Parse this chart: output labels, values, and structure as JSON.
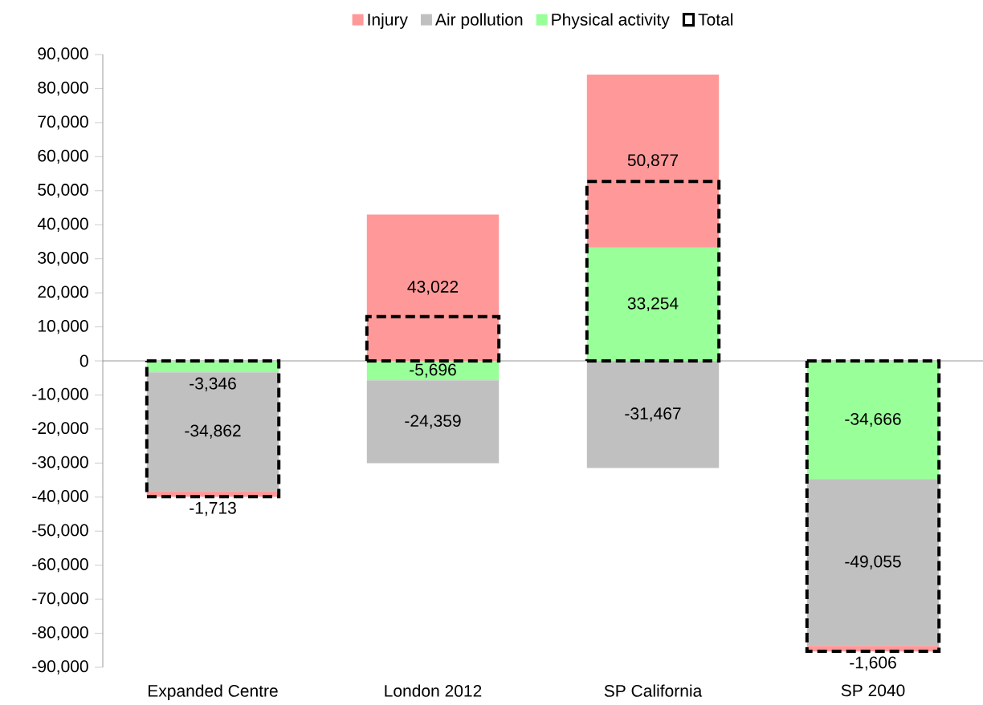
{
  "chart_data": {
    "type": "bar",
    "legend": "top",
    "categories": [
      "Expanded Centre",
      "London 2012",
      "SP California",
      "SP 2040"
    ],
    "ylim": [
      -90000,
      90000
    ],
    "yticks": [
      {
        "value": -90000,
        "label": "-90,000"
      },
      {
        "value": -80000,
        "label": "-80,000"
      },
      {
        "value": -70000,
        "label": "-70,000"
      },
      {
        "value": -60000,
        "label": "-60,000"
      },
      {
        "value": -50000,
        "label": "-50,000"
      },
      {
        "value": -40000,
        "label": "-40,000"
      },
      {
        "value": -30000,
        "label": "-30,000"
      },
      {
        "value": -20000,
        "label": "-20,000"
      },
      {
        "value": -10000,
        "label": "-10,000"
      },
      {
        "value": 0,
        "label": "0"
      },
      {
        "value": 10000,
        "label": "10,000"
      },
      {
        "value": 20000,
        "label": "20,000"
      },
      {
        "value": 30000,
        "label": "30,000"
      },
      {
        "value": 40000,
        "label": "40,000"
      },
      {
        "value": 50000,
        "label": "50,000"
      },
      {
        "value": 60000,
        "label": "60,000"
      },
      {
        "value": 70000,
        "label": "70,000"
      },
      {
        "value": 80000,
        "label": "80,000"
      },
      {
        "value": 90000,
        "label": "90,000"
      }
    ],
    "series": [
      {
        "name": "Physical activity",
        "color": "#99ff99",
        "base": [
          0,
          0,
          0,
          0
        ],
        "values": [
          -3346,
          -5696,
          33254,
          -34666
        ],
        "value_labels": [
          "-3,346",
          "-5,696",
          "33,254",
          "-34,666"
        ]
      },
      {
        "name": "Air pollution",
        "color": "#c0c0c0",
        "base": [
          -3346,
          -5696,
          0,
          -34666
        ],
        "values": [
          -34862,
          -24359,
          -31467,
          -49055
        ],
        "value_labels": [
          "-34,862",
          "-24,359",
          "-31,467",
          "-49,055"
        ]
      },
      {
        "name": "Injury",
        "color": "#ff9999",
        "base": [
          -38208,
          0,
          33254,
          -83721
        ],
        "values": [
          -1713,
          43022,
          50877,
          -1606
        ],
        "value_labels": [
          "-1,713",
          "43,022",
          "50,877",
          "-1,606"
        ]
      },
      {
        "name": "Total",
        "type": "bar",
        "line_style": "dashed",
        "color": "#000000",
        "values": [
          -39900,
          13000,
          52700,
          -85300
        ]
      }
    ]
  }
}
